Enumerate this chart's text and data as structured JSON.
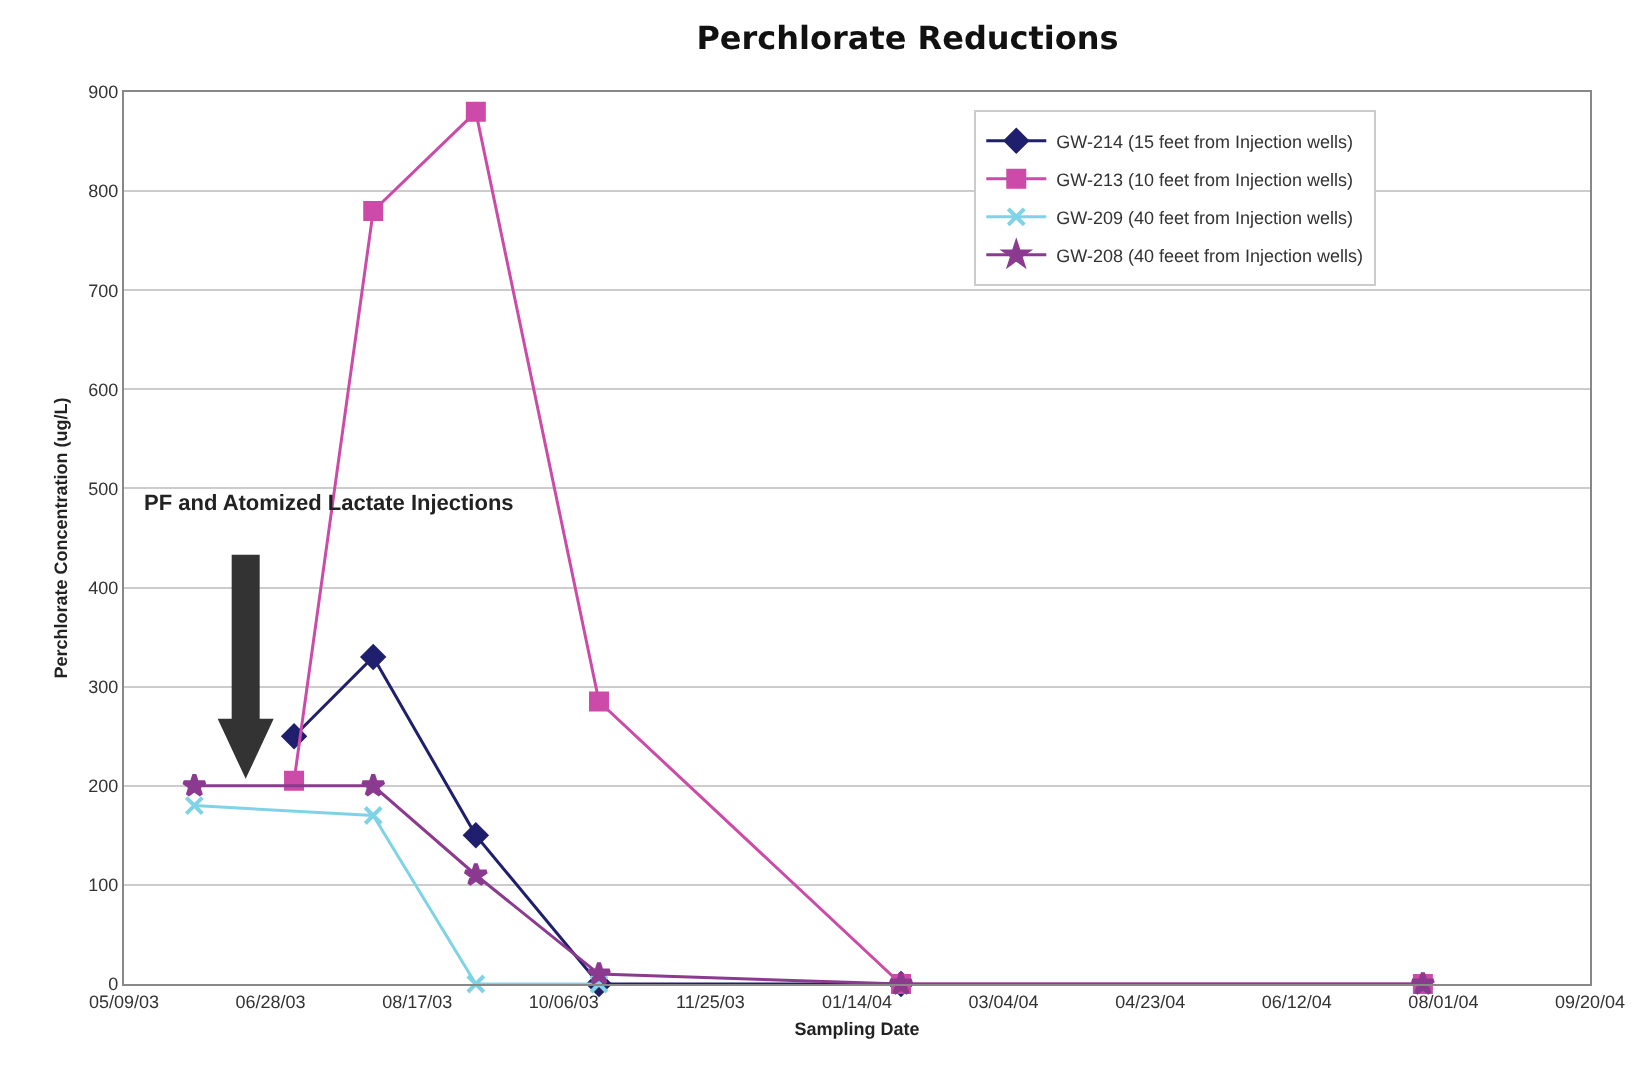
{
  "chart_data": {
    "type": "line",
    "title": "Perchlorate Reductions",
    "xlabel": "Sampling Date",
    "ylabel": "Perchlorate Concentration (ug/L)",
    "series": [
      {
        "name": "GW-214 (15 feet from Injection wells)",
        "color": "#1f1f6e",
        "marker": "diamond",
        "x": [
          "2003-07-06",
          "2003-08-02",
          "2003-09-06",
          "2003-10-18",
          "2004-01-29"
        ],
        "values": [
          250,
          330,
          150,
          0,
          0
        ]
      },
      {
        "name": "GW-213 (10 feet from Injection wells)",
        "color": "#cc4aa8",
        "marker": "square",
        "x": [
          "2003-07-06",
          "2003-08-02",
          "2003-09-06",
          "2003-10-18",
          "2004-01-29",
          "2004-07-25"
        ],
        "values": [
          205,
          780,
          880,
          285,
          0,
          0
        ]
      },
      {
        "name": "GW-209 (40 feet from Injection wells)",
        "color": "#7fd3e6",
        "marker": "cross",
        "x": [
          "2003-06-02",
          "2003-08-02",
          "2003-09-06",
          "2003-10-18"
        ],
        "values": [
          180,
          170,
          0,
          0
        ]
      },
      {
        "name": "GW-208 (40 feeet from Injection wells)",
        "color": "#8b3a8f",
        "marker": "star",
        "x": [
          "2003-06-02",
          "2003-08-02",
          "2003-09-06",
          "2003-10-18",
          "2004-01-29",
          "2004-07-25"
        ],
        "values": [
          200,
          200,
          110,
          10,
          0,
          0
        ]
      }
    ],
    "xlim": [
      "2003-05-09",
      "2004-09-20"
    ],
    "xticks": [
      {
        "value": "2003-05-09",
        "label": "05/09/03"
      },
      {
        "value": "2003-06-28",
        "label": "06/28/03"
      },
      {
        "value": "2003-08-17",
        "label": "08/17/03"
      },
      {
        "value": "2003-10-06",
        "label": "10/06/03"
      },
      {
        "value": "2003-11-25",
        "label": "11/25/03"
      },
      {
        "value": "2004-01-14",
        "label": "01/14/04"
      },
      {
        "value": "2004-03-04",
        "label": "03/04/04"
      },
      {
        "value": "2004-04-23",
        "label": "04/23/04"
      },
      {
        "value": "2004-06-12",
        "label": "06/12/04"
      },
      {
        "value": "2004-08-01",
        "label": "08/01/04"
      },
      {
        "value": "2004-09-20",
        "label": "09/20/04"
      }
    ],
    "ylim": [
      0,
      900
    ],
    "yticks": [
      0,
      100,
      200,
      300,
      400,
      500,
      600,
      700,
      800,
      900
    ],
    "grid": "y",
    "legend": "top right",
    "line_style": "solid",
    "annotations": [
      "PF and Atomized Lactate Injections"
    ]
  }
}
